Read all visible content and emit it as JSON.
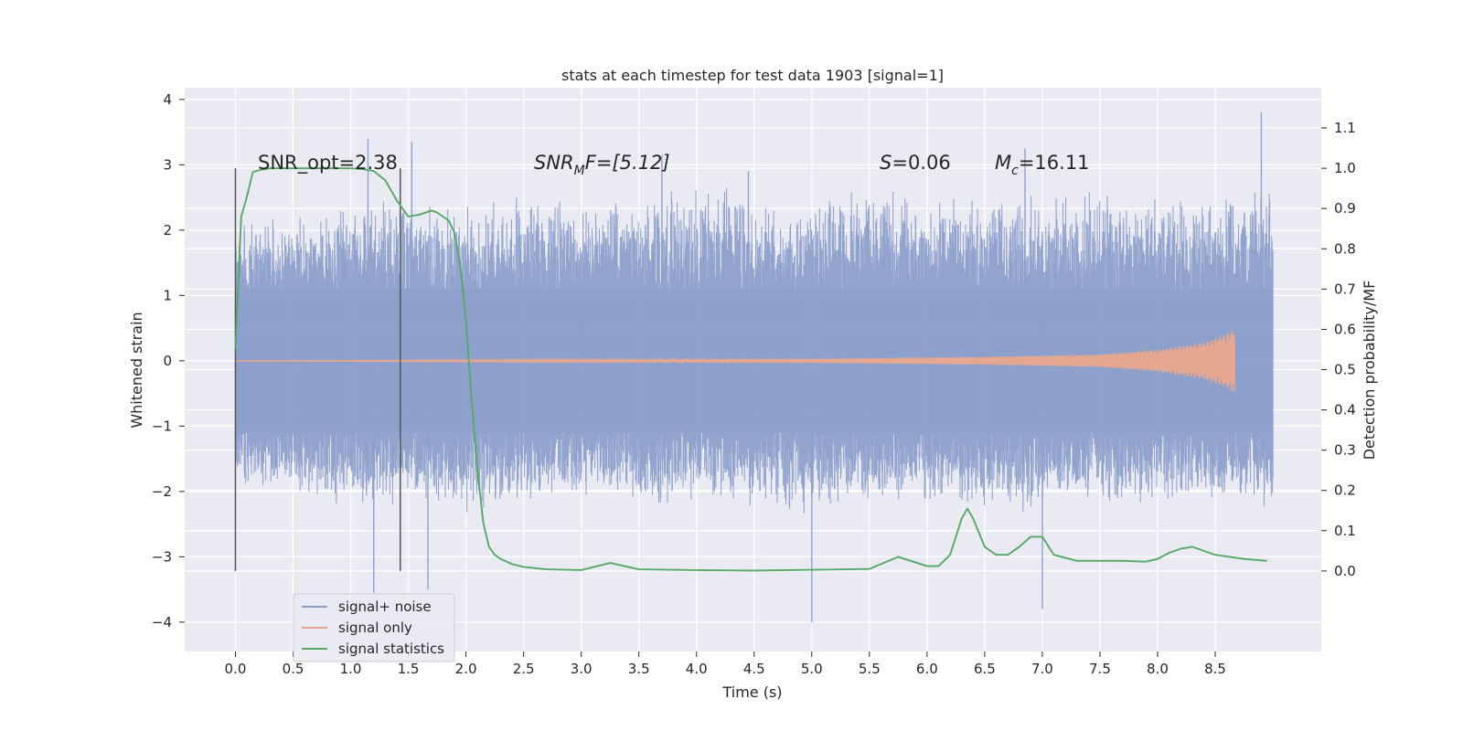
{
  "chart_data": {
    "type": "line",
    "title": "stats at each timestep for test data 1903 [signal=1]",
    "xlabel": "Time (s)",
    "ylabel_left": "Whitened strain",
    "ylabel_right": "Detection probability/MF",
    "xlim": [
      -0.44,
      9.42
    ],
    "ylim_left": [
      -4.45,
      4.18
    ],
    "ylim_right": [
      -0.2,
      1.2
    ],
    "x_ticks": [
      "0.0",
      "0.5",
      "1.0",
      "1.5",
      "2.0",
      "2.5",
      "3.0",
      "3.5",
      "4.0",
      "4.5",
      "5.0",
      "5.5",
      "6.0",
      "6.5",
      "7.0",
      "7.5",
      "8.0",
      "8.5"
    ],
    "y_ticks_left": [
      "−4",
      "−3",
      "−2",
      "−1",
      "0",
      "1",
      "2",
      "3",
      "4"
    ],
    "y_ticks_right": [
      "0.0",
      "0.1",
      "0.2",
      "0.3",
      "0.4",
      "0.5",
      "0.6",
      "0.7",
      "0.8",
      "0.9",
      "1.0",
      "1.1"
    ],
    "grid": true,
    "legend_position": "lower-left",
    "series": [
      {
        "name": "signal+ noise",
        "axis": "left",
        "color": "#8da0cb",
        "time_range": [
          0.0,
          9.0
        ],
        "envelope_upper": [
          2.1,
          2.3,
          2.5,
          2.6,
          2.4,
          2.7,
          2.5,
          2.6,
          2.9,
          2.4,
          2.6,
          2.8,
          2.5,
          2.6,
          2.7,
          2.5,
          2.6,
          2.8
        ],
        "envelope_lower": [
          -1.9,
          -2.1,
          -2.3,
          -2.2,
          -2.4,
          -2.2,
          -2.1,
          -2.3,
          -2.2,
          -2.4,
          -2.3,
          -2.2,
          -2.3,
          -2.4,
          -2.2,
          -2.3,
          -2.2,
          -2.3
        ],
        "spikes": [
          [
            1.15,
            3.4
          ],
          [
            1.2,
            -3.55
          ],
          [
            1.53,
            3.35
          ],
          [
            1.67,
            -3.5
          ],
          [
            5.0,
            -4.0
          ],
          [
            6.85,
            3.25
          ],
          [
            7.0,
            -3.8
          ],
          [
            8.9,
            3.8
          ],
          [
            3.7,
            3.15
          ],
          [
            4.45,
            2.9
          ]
        ]
      },
      {
        "name": "signal only",
        "axis": "left",
        "color": "#e5a78f",
        "time_range": [
          0.0,
          8.67
        ],
        "amplitude_envelope": [
          [
            0.0,
            0.0
          ],
          [
            5.0,
            0.03
          ],
          [
            6.5,
            0.06
          ],
          [
            7.5,
            0.1
          ],
          [
            8.0,
            0.17
          ],
          [
            8.4,
            0.28
          ],
          [
            8.6,
            0.42
          ],
          [
            8.67,
            0.5
          ]
        ]
      },
      {
        "name": "signal statistics",
        "axis": "right",
        "color": "#55a868",
        "x": [
          0.0,
          0.05,
          0.1,
          0.15,
          0.2,
          0.3,
          0.5,
          0.8,
          1.0,
          1.1,
          1.2,
          1.3,
          1.4,
          1.5,
          1.6,
          1.7,
          1.75,
          1.8,
          1.85,
          1.9,
          1.95,
          2.0,
          2.05,
          2.1,
          2.15,
          2.2,
          2.25,
          2.3,
          2.4,
          2.5,
          2.7,
          3.0,
          3.25,
          3.5,
          4.0,
          4.5,
          5.0,
          5.5,
          5.75,
          6.0,
          6.1,
          6.2,
          6.3,
          6.35,
          6.4,
          6.5,
          6.6,
          6.7,
          6.8,
          6.9,
          6.95,
          7.0,
          7.1,
          7.3,
          7.5,
          7.7,
          7.9,
          8.0,
          8.1,
          8.2,
          8.3,
          8.5,
          8.75,
          8.95
        ],
        "values": [
          0.55,
          0.88,
          0.93,
          0.99,
          0.995,
          1.0,
          1.0,
          1.0,
          1.0,
          0.998,
          0.993,
          0.97,
          0.92,
          0.88,
          0.885,
          0.895,
          0.89,
          0.88,
          0.87,
          0.84,
          0.76,
          0.62,
          0.42,
          0.25,
          0.12,
          0.06,
          0.04,
          0.03,
          0.017,
          0.01,
          0.004,
          0.002,
          0.02,
          0.004,
          0.002,
          0.001,
          0.003,
          0.005,
          0.035,
          0.012,
          0.012,
          0.04,
          0.13,
          0.155,
          0.13,
          0.06,
          0.04,
          0.04,
          0.06,
          0.085,
          0.085,
          0.085,
          0.04,
          0.025,
          0.025,
          0.025,
          0.023,
          0.03,
          0.045,
          0.055,
          0.06,
          0.04,
          0.03,
          0.025
        ]
      }
    ],
    "vertical_lines": [
      0.0,
      1.43
    ],
    "annotations": [
      {
        "id": "snr-opt",
        "x": 0.2,
        "y_right": 1.0,
        "text": "SNR_opt=2.38"
      },
      {
        "id": "snr-mf",
        "x": 2.6,
        "y_right": 1.0,
        "base": "SNR",
        "sub": "M",
        "tail": "F=[5.12]"
      },
      {
        "id": "s-value",
        "x": 5.6,
        "y_right": 1.0,
        "base": "S",
        "tail": "=0.06"
      },
      {
        "id": "mc-value",
        "x": 6.6,
        "y_right": 1.0,
        "base": "M",
        "sub": "c",
        "tail": "=16.11"
      }
    ]
  }
}
